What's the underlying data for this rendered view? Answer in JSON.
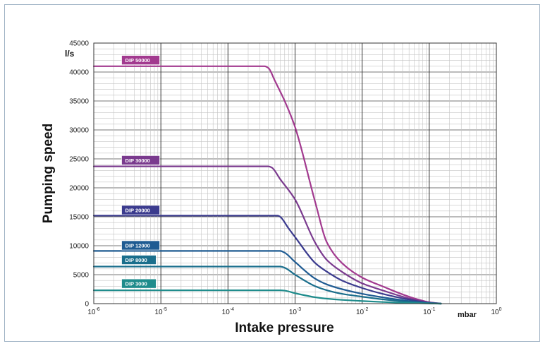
{
  "chart_data": {
    "type": "line",
    "xlabel": "Intake pressure",
    "ylabel": "Pumping speed",
    "x_unit": "mbar",
    "y_unit": "l/s",
    "x_scale": "log",
    "xlim": [
      1e-06,
      1
    ],
    "ylim": [
      0,
      45000
    ],
    "x_ticks": [
      {
        "mantissa": "10",
        "exp": "-6"
      },
      {
        "mantissa": "10",
        "exp": "-5"
      },
      {
        "mantissa": "10",
        "exp": "-4"
      },
      {
        "mantissa": "10",
        "exp": "-3"
      },
      {
        "mantissa": "10",
        "exp": "-2"
      },
      {
        "mantissa": "10",
        "exp": "-1"
      },
      {
        "mantissa": "10",
        "exp": "0"
      }
    ],
    "y_ticks": [
      "0",
      "5000",
      "10000",
      "15000",
      "20000",
      "25000",
      "30000",
      "35000",
      "40000",
      "45000"
    ],
    "grid": true,
    "series": [
      {
        "name": "DIP 50000",
        "color": "#a23a8f",
        "points": [
          [
            1e-06,
            41000
          ],
          [
            0.00035,
            41000
          ],
          [
            0.0004,
            40700
          ],
          [
            0.0005,
            38500
          ],
          [
            0.0007,
            35000
          ],
          [
            0.001,
            30500
          ],
          [
            0.002,
            17500
          ],
          [
            0.003,
            10500
          ],
          [
            0.005,
            7000
          ],
          [
            0.01,
            4500
          ],
          [
            0.02,
            3000
          ],
          [
            0.05,
            1200
          ],
          [
            0.1,
            250
          ],
          [
            0.15,
            0
          ]
        ]
      },
      {
        "name": "DIP 30000",
        "color": "#7a3a8e",
        "points": [
          [
            1e-06,
            23700
          ],
          [
            0.0004,
            23700
          ],
          [
            0.00045,
            23500
          ],
          [
            0.0006,
            21500
          ],
          [
            0.001,
            18000
          ],
          [
            0.002,
            10500
          ],
          [
            0.003,
            7500
          ],
          [
            0.005,
            5500
          ],
          [
            0.01,
            3500
          ],
          [
            0.02,
            2300
          ],
          [
            0.05,
            900
          ],
          [
            0.1,
            200
          ],
          [
            0.15,
            0
          ]
        ]
      },
      {
        "name": "DIP 20000",
        "color": "#3b3b8e",
        "points": [
          [
            1e-06,
            15200
          ],
          [
            0.00055,
            15200
          ],
          [
            0.0006,
            15000
          ],
          [
            0.0008,
            13000
          ],
          [
            0.001,
            11500
          ],
          [
            0.002,
            7000
          ],
          [
            0.003,
            5500
          ],
          [
            0.005,
            4000
          ],
          [
            0.01,
            2700
          ],
          [
            0.02,
            1700
          ],
          [
            0.05,
            700
          ],
          [
            0.1,
            150
          ],
          [
            0.15,
            0
          ]
        ]
      },
      {
        "name": "DIP 12000",
        "color": "#1f5b92",
        "points": [
          [
            1e-06,
            9100
          ],
          [
            0.0006,
            9100
          ],
          [
            0.0007,
            8800
          ],
          [
            0.001,
            7200
          ],
          [
            0.002,
            4300
          ],
          [
            0.003,
            3300
          ],
          [
            0.005,
            2500
          ],
          [
            0.01,
            1700
          ],
          [
            0.02,
            1100
          ],
          [
            0.05,
            450
          ],
          [
            0.1,
            100
          ],
          [
            0.15,
            0
          ]
        ]
      },
      {
        "name": "DIP 8000",
        "color": "#1a6e8c",
        "points": [
          [
            1e-06,
            6400
          ],
          [
            0.0006,
            6400
          ],
          [
            0.0007,
            6200
          ],
          [
            0.001,
            5000
          ],
          [
            0.002,
            3000
          ],
          [
            0.003,
            2300
          ],
          [
            0.005,
            1700
          ],
          [
            0.01,
            1200
          ],
          [
            0.02,
            750
          ],
          [
            0.05,
            300
          ],
          [
            0.1,
            60
          ],
          [
            0.15,
            0
          ]
        ]
      },
      {
        "name": "DIP 3000",
        "color": "#1f8c8c",
        "points": [
          [
            1e-06,
            2300
          ],
          [
            0.0006,
            2300
          ],
          [
            0.0007,
            2250
          ],
          [
            0.001,
            1800
          ],
          [
            0.002,
            1100
          ],
          [
            0.003,
            850
          ],
          [
            0.005,
            650
          ],
          [
            0.01,
            450
          ],
          [
            0.02,
            280
          ],
          [
            0.05,
            120
          ],
          [
            0.1,
            30
          ],
          [
            0.15,
            0
          ]
        ]
      }
    ],
    "labels": [
      {
        "series": "DIP 50000",
        "text": "DIP 50000",
        "color": "#a23a8f",
        "at": [
          2.8e-06,
          42000
        ]
      },
      {
        "series": "DIP 30000",
        "text": "DIP 30000",
        "color": "#7a3a8e",
        "at": [
          2.8e-06,
          24700
        ]
      },
      {
        "series": "DIP 20000",
        "text": "DIP 20000",
        "color": "#3b3b8e",
        "at": [
          2.8e-06,
          16100
        ]
      },
      {
        "series": "DIP 12000",
        "text": "DIP 12000",
        "color": "#1f5b92",
        "at": [
          2.8e-06,
          10000
        ]
      },
      {
        "series": "DIP 8000",
        "text": "DIP 8000",
        "color": "#1a6e8c",
        "at": [
          2.8e-06,
          7500
        ]
      },
      {
        "series": "DIP 3000",
        "text": "DIP 3000",
        "color": "#1f8c8c",
        "at": [
          2.8e-06,
          3400
        ]
      }
    ]
  }
}
